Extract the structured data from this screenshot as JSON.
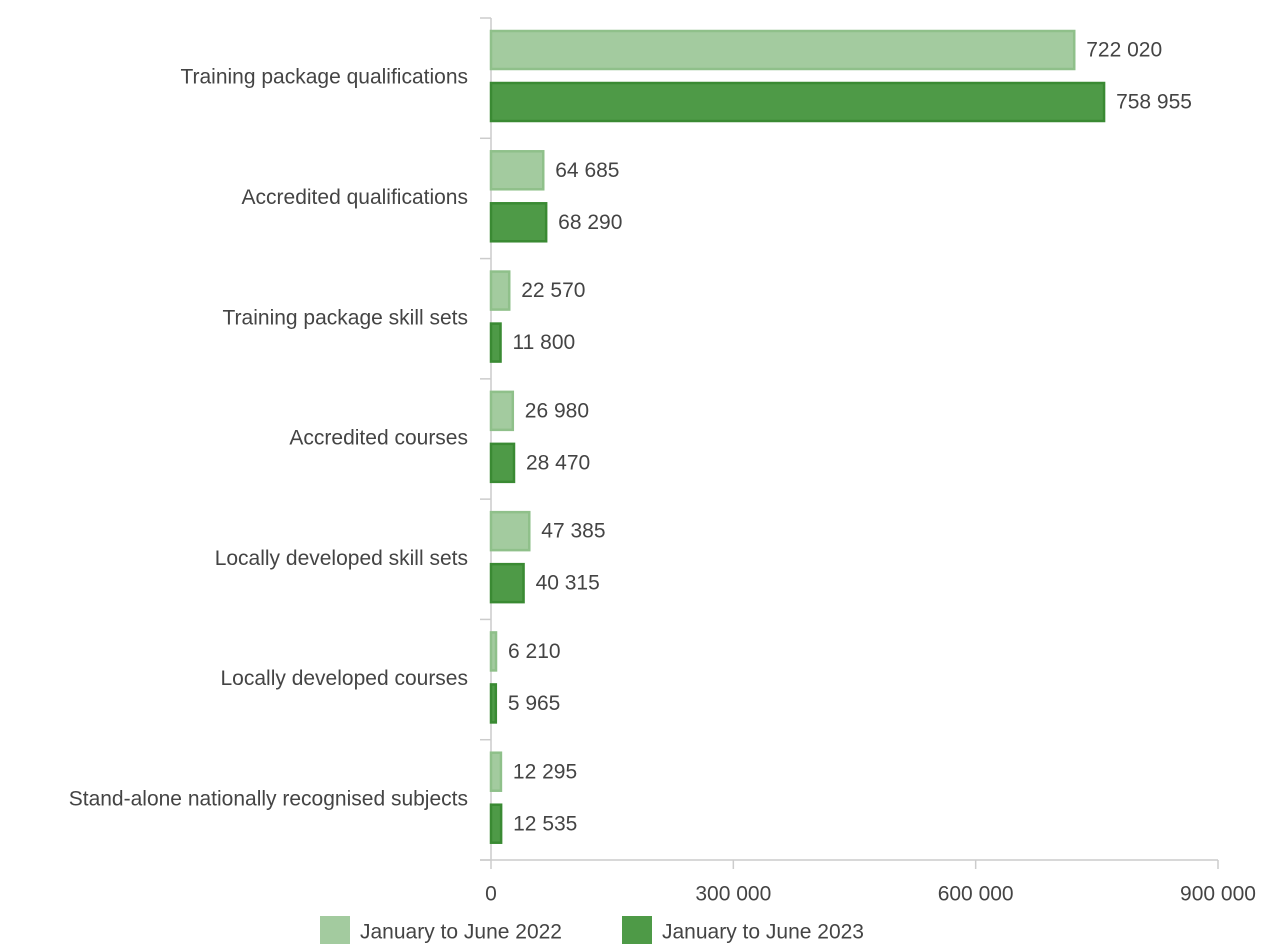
{
  "chart_data": {
    "type": "bar",
    "orientation": "horizontal",
    "categories": [
      "Training package qualifications",
      "Accredited qualifications",
      "Training package skill sets",
      "Accredited courses",
      "Locally developed skill sets",
      "Locally developed courses",
      "Stand-alone nationally recognised subjects"
    ],
    "series": [
      {
        "name": "January to June 2022",
        "color": "#a3cb9f",
        "values": [
          722020,
          64685,
          22570,
          26980,
          47385,
          6210,
          12295
        ],
        "value_labels": [
          "722 020",
          "64 685",
          "22 570",
          "26 980",
          "47 385",
          "6 210",
          "12 295"
        ]
      },
      {
        "name": "January to June 2023",
        "color": "#4e9a47",
        "values": [
          758955,
          68290,
          11800,
          28470,
          40315,
          5965,
          12535
        ],
        "value_labels": [
          "758 955",
          "68 290",
          "11 800",
          "28 470",
          "40 315",
          "5 965",
          "12 535"
        ]
      }
    ],
    "xlim": [
      0,
      900000
    ],
    "xticks": [
      0,
      {
        "value": 300000,
        "label": "300 000"
      },
      {
        "value": 600000,
        "label": "600 000"
      },
      {
        "value": 900000,
        "label": "900 000"
      }
    ],
    "legend": "bottom"
  }
}
